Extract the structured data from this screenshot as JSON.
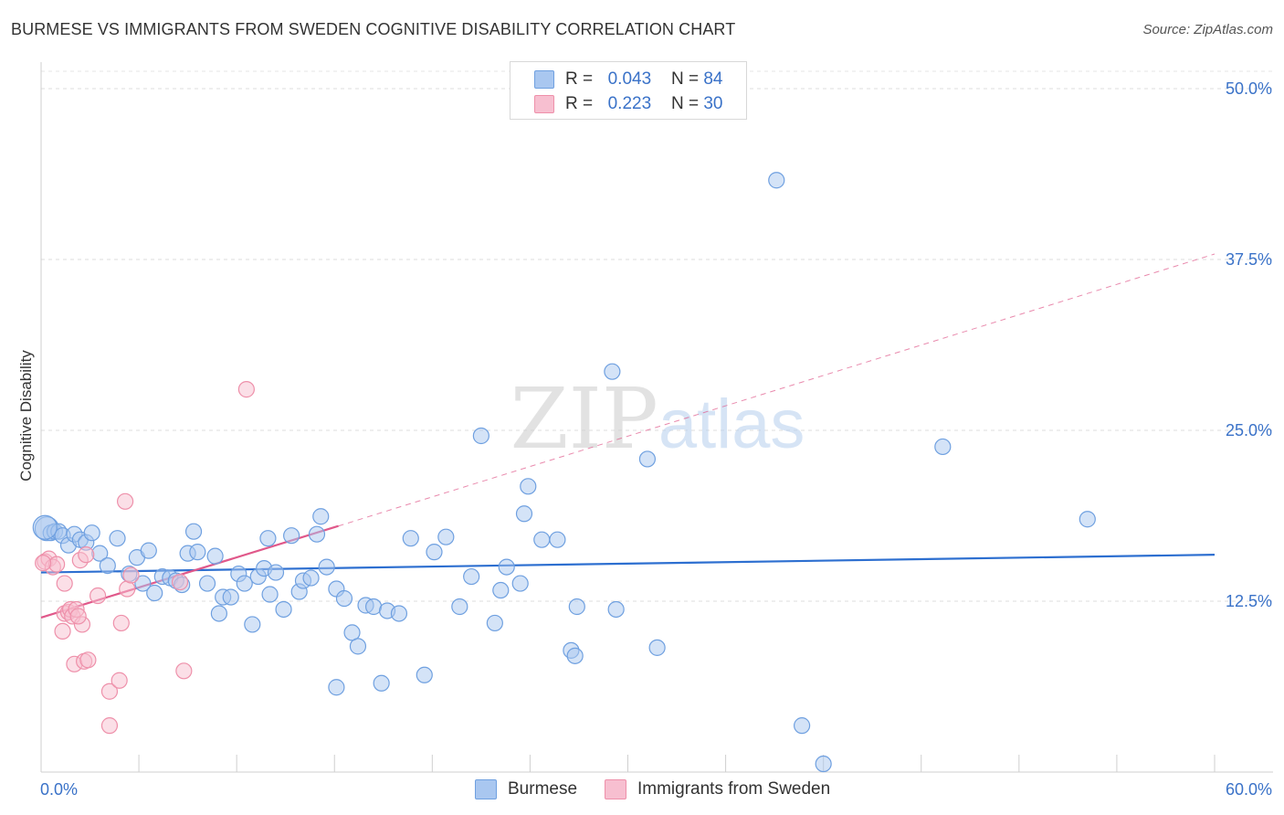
{
  "chart_data": {
    "type": "scatter",
    "title": "BURMESE VS IMMIGRANTS FROM SWEDEN COGNITIVE DISABILITY CORRELATION CHART",
    "source": "Source: ZipAtlas.com",
    "xlabel": "",
    "ylabel": "Cognitive Disability",
    "xlim": [
      0,
      60
    ],
    "ylim": [
      0,
      50
    ],
    "x_ticks": [
      0,
      60
    ],
    "x_tick_labels": [
      "0.0%",
      "60.0%"
    ],
    "y_ticks": [
      12.5,
      25,
      37.5,
      50
    ],
    "y_tick_labels": [
      "12.5%",
      "25.0%",
      "37.5%",
      "50.0%"
    ],
    "watermark": "ZIPatlas",
    "legend": {
      "position": "top-center",
      "rows": [
        {
          "r_label": "R =",
          "r_value": "0.043",
          "n_label": "N =",
          "n_value": "84"
        },
        {
          "r_label": "R =",
          "r_value": "0.223",
          "n_label": "N =",
          "n_value": "30"
        }
      ]
    },
    "series": [
      {
        "name": "Burmese",
        "color": "#6fa0e0",
        "fill": "#a9c7f0",
        "trend": {
          "x": [
            0,
            60
          ],
          "y": [
            14.6,
            15.9
          ],
          "color": "#2d6fd0"
        },
        "points": [
          [
            0.3,
            17.8
          ],
          [
            0.5,
            17.5
          ],
          [
            0.7,
            17.6
          ],
          [
            0.9,
            17.6
          ],
          [
            1.1,
            17.3
          ],
          [
            1.4,
            16.6
          ],
          [
            1.7,
            17.4
          ],
          [
            2.0,
            17.0
          ],
          [
            2.3,
            16.8
          ],
          [
            2.6,
            17.5
          ],
          [
            3.0,
            16.0
          ],
          [
            3.4,
            15.1
          ],
          [
            3.9,
            17.1
          ],
          [
            4.5,
            14.5
          ],
          [
            4.9,
            15.7
          ],
          [
            5.2,
            13.8
          ],
          [
            5.5,
            16.2
          ],
          [
            5.8,
            13.1
          ],
          [
            6.2,
            14.3
          ],
          [
            6.6,
            14.2
          ],
          [
            6.9,
            14.0
          ],
          [
            7.2,
            13.7
          ],
          [
            7.5,
            16.0
          ],
          [
            7.8,
            17.6
          ],
          [
            8.0,
            16.1
          ],
          [
            8.5,
            13.8
          ],
          [
            8.9,
            15.8
          ],
          [
            9.1,
            11.6
          ],
          [
            9.3,
            12.8
          ],
          [
            9.7,
            12.8
          ],
          [
            10.1,
            14.5
          ],
          [
            10.4,
            13.8
          ],
          [
            10.8,
            10.8
          ],
          [
            11.1,
            14.3
          ],
          [
            11.4,
            14.9
          ],
          [
            11.7,
            13.0
          ],
          [
            11.6,
            17.1
          ],
          [
            12.0,
            14.6
          ],
          [
            12.4,
            11.9
          ],
          [
            12.8,
            17.3
          ],
          [
            13.2,
            13.2
          ],
          [
            13.4,
            14.0
          ],
          [
            13.8,
            14.2
          ],
          [
            14.1,
            17.4
          ],
          [
            14.3,
            18.7
          ],
          [
            14.6,
            15.0
          ],
          [
            15.1,
            13.4
          ],
          [
            15.5,
            12.7
          ],
          [
            15.9,
            10.2
          ],
          [
            16.2,
            9.2
          ],
          [
            15.1,
            6.2
          ],
          [
            16.6,
            12.2
          ],
          [
            17.0,
            12.1
          ],
          [
            17.4,
            6.5
          ],
          [
            17.7,
            11.8
          ],
          [
            18.3,
            11.6
          ],
          [
            18.9,
            17.1
          ],
          [
            19.6,
            7.1
          ],
          [
            20.1,
            16.1
          ],
          [
            20.7,
            17.2
          ],
          [
            21.4,
            12.1
          ],
          [
            22.0,
            14.3
          ],
          [
            22.5,
            24.6
          ],
          [
            23.2,
            10.9
          ],
          [
            23.5,
            13.3
          ],
          [
            23.8,
            15.0
          ],
          [
            24.5,
            13.8
          ],
          [
            24.7,
            18.9
          ],
          [
            24.9,
            20.9
          ],
          [
            25.6,
            17.0
          ],
          [
            26.4,
            17.0
          ],
          [
            27.1,
            8.9
          ],
          [
            27.3,
            8.5
          ],
          [
            27.4,
            12.1
          ],
          [
            29.2,
            29.3
          ],
          [
            29.4,
            11.9
          ],
          [
            31.0,
            22.9
          ],
          [
            31.5,
            9.1
          ],
          [
            37.6,
            43.3
          ],
          [
            38.9,
            3.4
          ],
          [
            40.0,
            0.6
          ],
          [
            46.1,
            23.8
          ],
          [
            53.5,
            18.5
          ],
          [
            0.2,
            17.9
          ]
        ]
      },
      {
        "name": "Immigrants from Sweden",
        "color": "#ee90aa",
        "fill": "#f7bfd0",
        "trend": {
          "x": [
            0,
            15.2
          ],
          "y": [
            11.3,
            18.0
          ],
          "color": "#e0588a",
          "dashed_extension": {
            "x": [
              15.2,
              60
            ],
            "y": [
              18.0,
              37.9
            ]
          }
        },
        "points": [
          [
            0.2,
            15.4
          ],
          [
            0.4,
            15.6
          ],
          [
            0.6,
            15.0
          ],
          [
            0.8,
            15.2
          ],
          [
            1.1,
            10.3
          ],
          [
            1.2,
            11.6
          ],
          [
            1.2,
            13.8
          ],
          [
            1.4,
            11.7
          ],
          [
            1.5,
            11.9
          ],
          [
            1.6,
            11.4
          ],
          [
            1.7,
            7.9
          ],
          [
            1.8,
            11.9
          ],
          [
            2.0,
            15.5
          ],
          [
            2.1,
            10.8
          ],
          [
            2.2,
            8.1
          ],
          [
            2.3,
            15.9
          ],
          [
            2.4,
            8.2
          ],
          [
            2.9,
            12.9
          ],
          [
            3.5,
            5.9
          ],
          [
            3.5,
            3.4
          ],
          [
            4.0,
            6.7
          ],
          [
            4.1,
            10.9
          ],
          [
            4.3,
            19.8
          ],
          [
            4.4,
            13.4
          ],
          [
            4.6,
            14.4
          ],
          [
            7.1,
            13.9
          ],
          [
            7.3,
            7.4
          ],
          [
            10.5,
            28.0
          ],
          [
            0.1,
            15.3
          ],
          [
            1.9,
            11.4
          ]
        ]
      }
    ]
  },
  "labels": {
    "legend_burmese": "Burmese",
    "legend_sweden": "Immigrants from Sweden"
  }
}
